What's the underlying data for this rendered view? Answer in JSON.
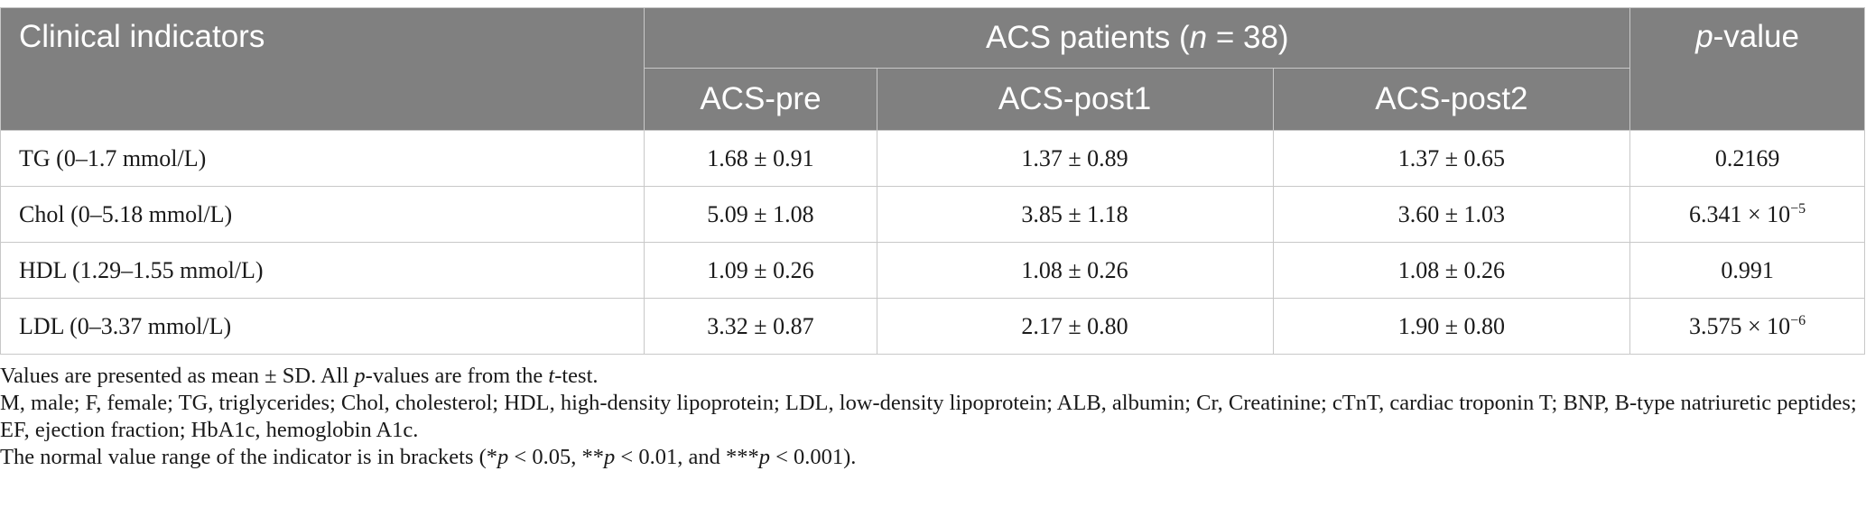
{
  "table": {
    "header": {
      "clinical_indicators": "Clinical indicators",
      "group_prefix": "ACS patients (",
      "group_n": "n",
      "group_suffix": " = 38)",
      "p_letter": "p",
      "p_suffix": "-value",
      "columns": [
        "ACS-pre",
        "ACS-post1",
        "ACS-post2"
      ]
    },
    "rows": [
      {
        "label": "TG (0–1.7 mmol/L)",
        "pre": "1.68 ± 0.91",
        "post1": "1.37 ± 0.89",
        "post2": "1.37 ± 0.65",
        "p_base": "0.2169",
        "p_exp": ""
      },
      {
        "label": "Chol (0–5.18 mmol/L)",
        "pre": "5.09 ± 1.08",
        "post1": "3.85 ± 1.18",
        "post2": "3.60 ± 1.03",
        "p_base": "6.341 × 10",
        "p_exp": "−5"
      },
      {
        "label": "HDL (1.29–1.55 mmol/L)",
        "pre": "1.09 ± 0.26",
        "post1": "1.08 ± 0.26",
        "post2": "1.08 ± 0.26",
        "p_base": "0.991",
        "p_exp": ""
      },
      {
        "label": "LDL (0–3.37 mmol/L)",
        "pre": "3.32 ± 0.87",
        "post1": "2.17 ± 0.80",
        "post2": "1.90 ± 0.80",
        "p_base": "3.575 × 10",
        "p_exp": "−6"
      }
    ]
  },
  "footnotes": {
    "n1": {
      "a": "Values are presented as mean ± SD. All ",
      "b": "p",
      "c": "-values are from the ",
      "d": "t",
      "e": "-test."
    },
    "n2": "M, male; F, female; TG, triglycerides; Chol, cholesterol; HDL, high-density lipoprotein; LDL, low-density lipoprotein; ALB, albumin; Cr, Creatinine; cTnT, cardiac troponin T; BNP, B-type natriuretic peptides; EF, ejection fraction; HbA1c, hemoglobin A1c.",
    "n3": {
      "a": "The normal value range of the indicator is in brackets (*",
      "p": "p",
      "b": " < 0.05, **",
      "c": " < 0.01, and ***",
      "d": " < 0.001)."
    }
  }
}
